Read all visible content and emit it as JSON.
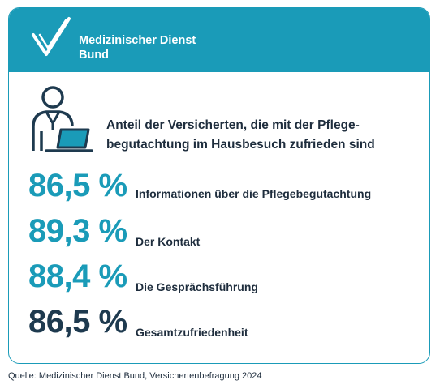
{
  "brand": {
    "name_line1": "Medizinischer Dienst",
    "name_line2": "Bund",
    "color": "#1a9bb8"
  },
  "headline": {
    "line1": "Anteil der Versicherten, die mit der Pflege-",
    "line2": "begutachtung im Hausbesuch zufrieden sind"
  },
  "stats": [
    {
      "value": "86,5 %",
      "label": "Informationen über die Pflegebegutachtung",
      "color": "#1a9bb8"
    },
    {
      "value": "89,3 %",
      "label": "Der Kontakt",
      "color": "#1a9bb8"
    },
    {
      "value": "88,4 %",
      "label": "Die Gesprächsführung",
      "color": "#1a9bb8"
    },
    {
      "value": "86,5 %",
      "label": "Gesamtzufriedenheit",
      "color": "#1e3a4f"
    }
  ],
  "source": "Quelle: Medizinischer Dienst Bund, Versichertenbefragung 2024",
  "icons": {
    "logo": "checkmark-logo-icon",
    "person": "person-laptop-icon"
  }
}
